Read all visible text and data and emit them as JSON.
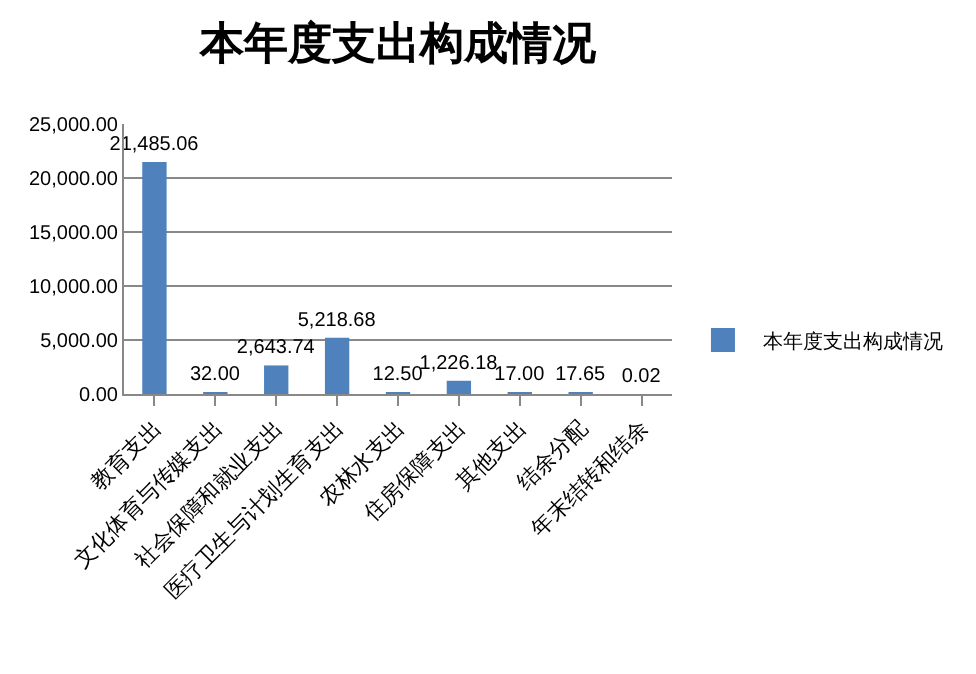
{
  "chart_data": {
    "type": "bar",
    "title": "本年度支出构成情况",
    "categories": [
      "教育支出",
      "文化体育与传媒支出",
      "社会保障和就业支出",
      "医疗卫生与计划生育支出",
      "农林水支出",
      "住房保障支出",
      "其他支出",
      "结余分配",
      "年末结转和结余"
    ],
    "series": [
      {
        "name": "本年度支出构成情况",
        "color": "#4f81bd",
        "values": [
          21485.06,
          32,
          2643.74,
          5218.68,
          12.5,
          1226.18,
          17,
          17.65,
          0.02
        ],
        "value_labels": [
          "21,485.06",
          "32.00",
          "2,643.74",
          "5,218.68",
          "12.50",
          "1,226.18",
          "17.00",
          "17.65",
          "0.02"
        ]
      }
    ],
    "ylim": [
      0,
      25000
    ],
    "yticks": [
      {
        "value": 0,
        "label": "0.00"
      },
      {
        "value": 5000,
        "label": "5,000.00"
      },
      {
        "value": 10000,
        "label": "10,000.00"
      },
      {
        "value": 15000,
        "label": "15,000.00"
      },
      {
        "value": 20000,
        "label": "20,000.00"
      },
      {
        "value": 25000,
        "label": "25,000.00"
      }
    ],
    "grid": "y",
    "legend": "right"
  }
}
